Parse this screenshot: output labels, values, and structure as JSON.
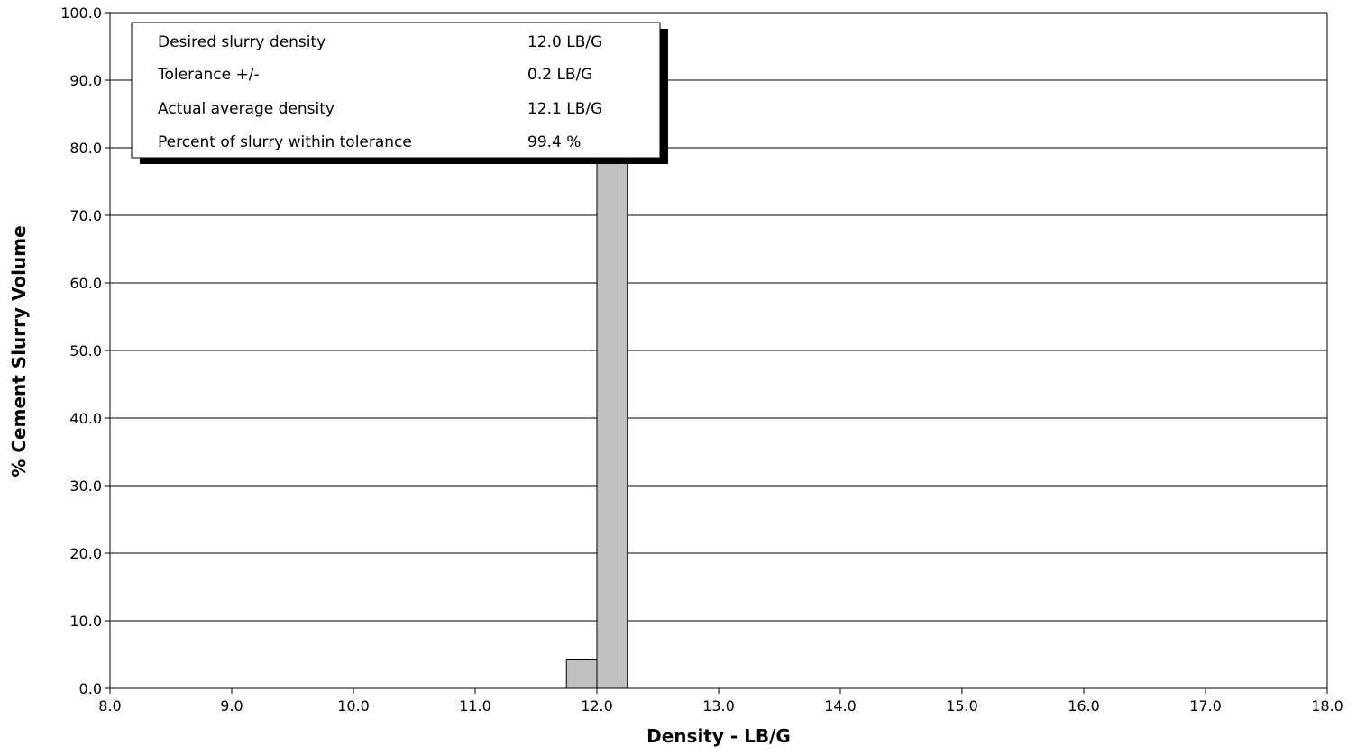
{
  "chart_data": {
    "type": "bar",
    "title": "",
    "xlabel": "Density - LB/G",
    "ylabel": "% Cement Slurry Volume",
    "xlim": [
      8.0,
      18.0
    ],
    "ylim": [
      0.0,
      100.0
    ],
    "x_ticks": [
      "8.0",
      "9.0",
      "10.0",
      "11.0",
      "12.0",
      "13.0",
      "14.0",
      "15.0",
      "16.0",
      "17.0",
      "18.0"
    ],
    "y_ticks": [
      "0.0",
      "10.0",
      "20.0",
      "30.0",
      "40.0",
      "50.0",
      "60.0",
      "70.0",
      "80.0",
      "90.0",
      "100.0"
    ],
    "bin_width": 0.25,
    "bars": [
      {
        "x_start": 11.75,
        "x_end": 12.0,
        "value": 4.2
      },
      {
        "x_start": 12.0,
        "x_end": 12.25,
        "value": 95.2
      }
    ],
    "grid": "horizontal",
    "colors": {
      "bar_fill": "#c0c0c0",
      "bar_stroke": "#000000",
      "grid": "#000000"
    },
    "info_box": {
      "rows": [
        {
          "label": "Desired slurry density",
          "value": "12.0 LB/G"
        },
        {
          "label": "Tolerance +/-",
          "value": "0.2 LB/G"
        },
        {
          "label": "Actual average density",
          "value": "12.1 LB/G"
        },
        {
          "label": "Percent of slurry within tolerance",
          "value": "99.4 %"
        }
      ]
    }
  }
}
